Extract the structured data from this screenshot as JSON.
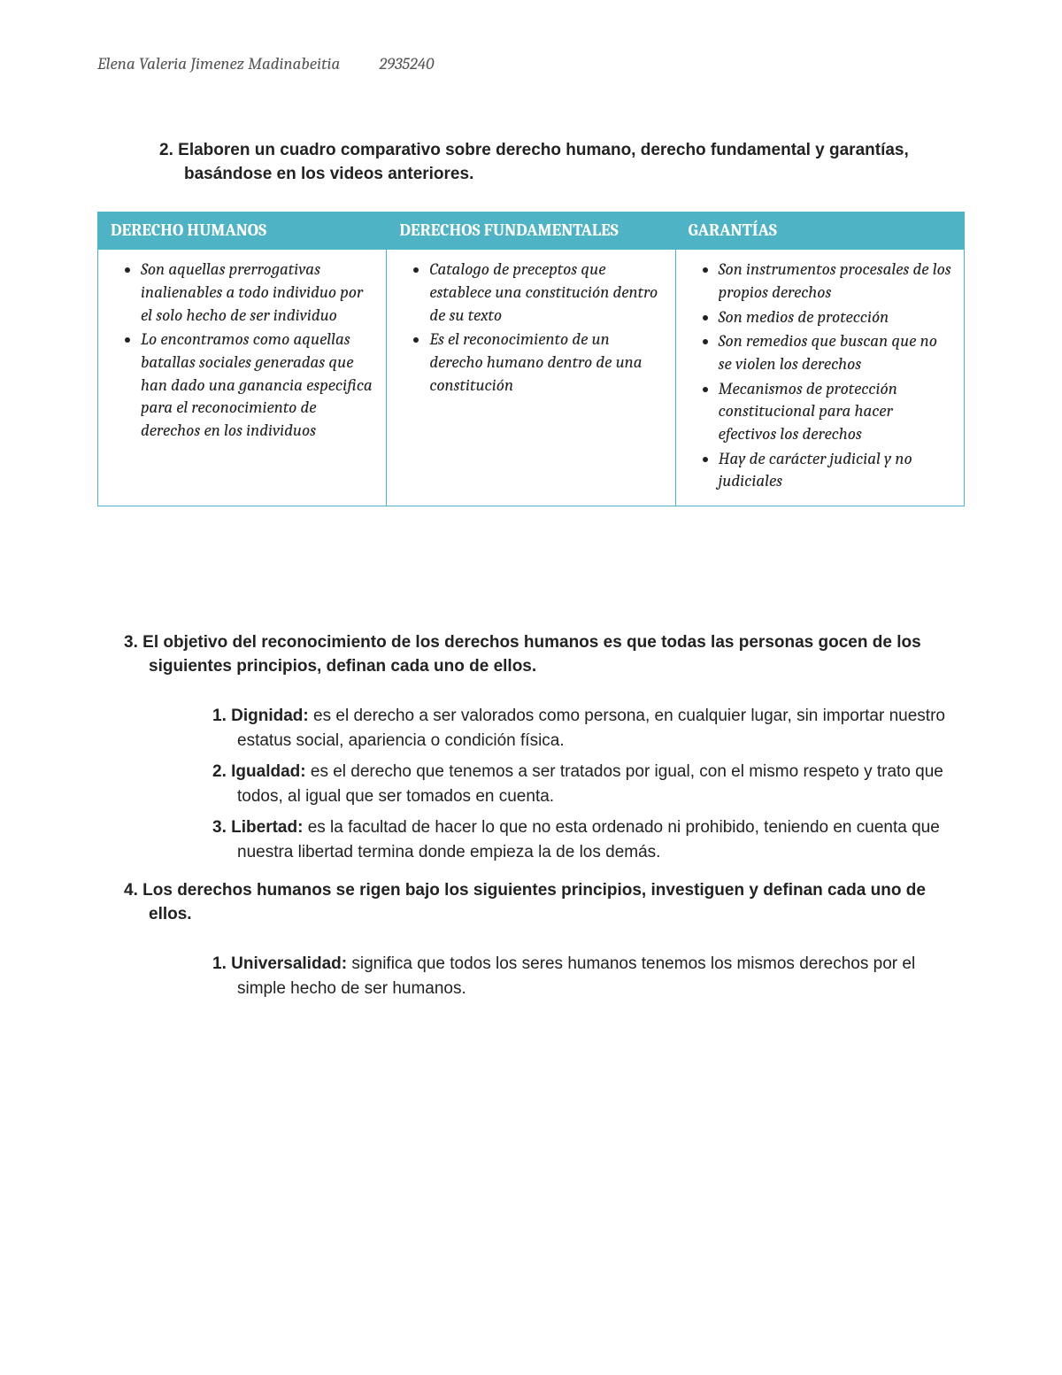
{
  "header": {
    "name": "Elena Valeria Jimenez Madinabeitia",
    "id": "2935240"
  },
  "q2": {
    "number": "2.",
    "text": "Elaboren un cuadro comparativo sobre derecho humano, derecho fundamental y garantías, basándose en los videos anteriores."
  },
  "table": {
    "headers": {
      "c1": "DERECHO HUMANOS",
      "c2": "DERECHOS FUNDAMENTALES",
      "c3": "GARANTÍAS"
    },
    "col1": [
      "Son aquellas prerrogativas inalienables a todo individuo por el solo hecho de ser individuo",
      "Lo encontramos como aquellas batallas sociales generadas que han dado una ganancia especifica para el reconocimiento de derechos en los individuos"
    ],
    "col2": [
      "Catalogo de preceptos que establece una constitución dentro de su texto",
      "Es el reconocimiento de un derecho humano dentro de una constitución"
    ],
    "col3": [
      "Son instrumentos procesales de los propios derechos",
      "Son medios de protección",
      "Son remedios que buscan que no se violen los derechos",
      "Mecanismos de protección constitucional para hacer efectivos los derechos",
      "Hay de carácter judicial y no judiciales"
    ]
  },
  "q3": {
    "number": "3.",
    "text": "El objetivo del reconocimiento de los derechos humanos es que todas las personas gocen de los siguientes principios, definan cada uno de ellos.",
    "items": [
      {
        "num": "1.",
        "term": "Dignidad:",
        "def": " es el derecho a ser valorados como persona, en cualquier lugar, sin importar nuestro estatus social, apariencia o condición física."
      },
      {
        "num": "2.",
        "term": "Igualdad:",
        "def": " es el derecho que tenemos a ser tratados por igual, con el mismo respeto y trato que todos, al igual que ser tomados en cuenta."
      },
      {
        "num": "3.",
        "term": "Libertad:",
        "def": " es la facultad de hacer lo que no esta ordenado ni prohibido, teniendo en cuenta que nuestra libertad termina donde empieza la de los demás."
      }
    ]
  },
  "q4": {
    "number": "4.",
    "text": "Los derechos humanos se rigen bajo los siguientes principios, investiguen y definan cada uno de ellos.",
    "items": [
      {
        "num": "1.",
        "term": "Universalidad:",
        "def": " significa que todos los seres humanos tenemos los mismos derechos por el simple hecho de ser humanos."
      }
    ]
  }
}
